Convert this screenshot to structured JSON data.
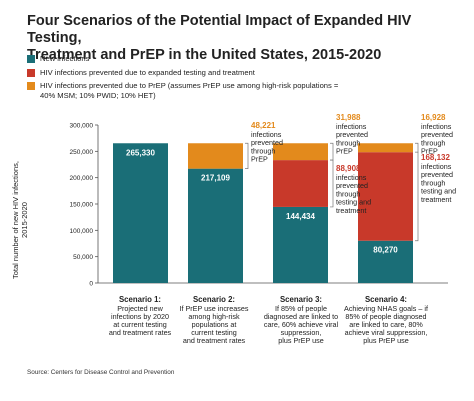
{
  "title_line1": "Four Scenarios of the Potential Impact of Expanded HIV Testing,",
  "title_line2": "Treatment and PrEP in the United States, 2015-2020",
  "legend": [
    {
      "label": "New infections",
      "color": "#1a6e77"
    },
    {
      "label": "HIV infections prevented due to expanded testing and treatment",
      "color": "#c8392a"
    },
    {
      "label": "HIV infections prevented due to PrEP (assumes PrEP use among high-risk populations = 40% MSM; 10% PWID; 10% HET)",
      "color": "#e38a1c"
    }
  ],
  "ylabel_line1": "Total number of new HIV infections,",
  "ylabel_line2": "2015-2020",
  "source": "Source: Centers for Disease Control and Prevention",
  "chart_data": {
    "type": "bar",
    "stacked": true,
    "ylim": [
      0,
      300000
    ],
    "yticks": [
      "0",
      "50,000",
      "100,000",
      "150,000",
      "200,000",
      "250,000",
      "300,000"
    ],
    "ytick_values": [
      0,
      50000,
      100000,
      150000,
      200000,
      250000,
      300000
    ],
    "grid": false,
    "categories": [
      "Scenario 1",
      "Scenario 2",
      "Scenario 3",
      "Scenario 4"
    ],
    "series": [
      {
        "name": "New infections",
        "color": "#1a6e77",
        "values": [
          265330,
          217109,
          144434,
          80270
        ],
        "labels": [
          "265,330",
          "217,109",
          "144,434",
          "80,270"
        ]
      },
      {
        "name": "HIV infections prevented due to expanded testing and treatment",
        "color": "#c8392a",
        "values": [
          0,
          0,
          88908,
          168132
        ],
        "labels": [
          "",
          "",
          "88,908",
          "168,132"
        ]
      },
      {
        "name": "HIV infections prevented due to PrEP",
        "color": "#e38a1c",
        "values": [
          0,
          48221,
          31988,
          16928
        ],
        "labels": [
          "",
          "48,221",
          "31,988",
          "16,928"
        ]
      }
    ],
    "annotations": [
      [],
      [
        {
          "value": "48,221",
          "text": [
            "infections",
            "prevented",
            "through",
            "PrEP"
          ],
          "color": "#e38a1c"
        }
      ],
      [
        {
          "value": "31,988",
          "text": [
            "infections",
            "prevented",
            "through",
            "PrEP"
          ],
          "color": "#e38a1c"
        },
        {
          "value": "88,908",
          "text": [
            "infections",
            "prevented",
            "through",
            "testing and",
            "treatment"
          ],
          "color": "#c8392a"
        }
      ],
      [
        {
          "value": "16,928",
          "text": [
            "infections",
            "prevented",
            "through",
            "PrEP"
          ],
          "color": "#e38a1c"
        },
        {
          "value": "168,132",
          "text": [
            "infections",
            "prevented",
            "through",
            "testing and",
            "treatment"
          ],
          "color": "#c8392a"
        }
      ]
    ],
    "scenario_titles": [
      "Scenario 1:",
      "Scenario 2:",
      "Scenario 3:",
      "Scenario 4:"
    ],
    "scenario_desc": [
      [
        "Projected new",
        "infections by 2020",
        "at current testing",
        "and treatment rates"
      ],
      [
        "If PrEP use increases",
        "among high-risk",
        "populations at",
        "current testing",
        "and treatment rates"
      ],
      [
        "If 85% of people",
        "diagnosed are linked to",
        "care, 60% achieve viral",
        "suppression,",
        "plus PrEP use"
      ],
      [
        "Achieving NHAS goals – if",
        "85% of people diagnosed",
        "are linked to care, 80%",
        "achieve viral suppression,",
        "plus PrEP use"
      ]
    ]
  }
}
